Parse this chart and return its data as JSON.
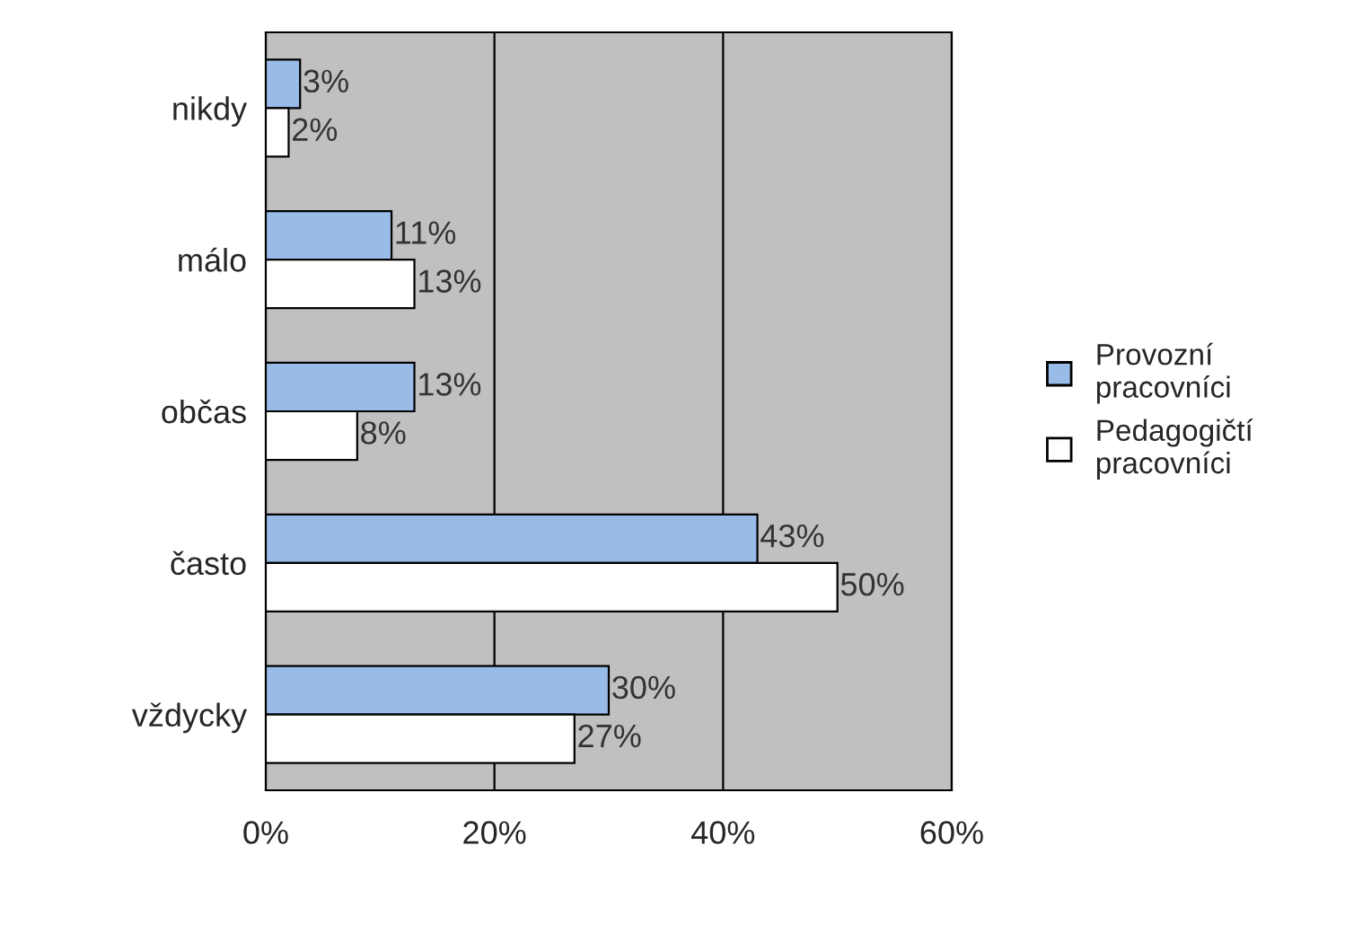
{
  "chart_data": {
    "type": "bar",
    "orientation": "horizontal",
    "categories": [
      "nikdy",
      "málo",
      "občas",
      "často",
      "vždycky"
    ],
    "series": [
      {
        "name": "Provozní\npracovníci",
        "color": "#99bbe8",
        "values": [
          3,
          11,
          13,
          43,
          30
        ],
        "value_labels": [
          "3%",
          "11%",
          "13%",
          "43%",
          "30%"
        ]
      },
      {
        "name": "Pedagogičtí\npracovníci",
        "color": "#ffffff",
        "values": [
          2,
          13,
          8,
          50,
          27
        ],
        "value_labels": [
          "2%",
          "13%",
          "8%",
          "50%",
          "27%"
        ]
      }
    ],
    "xlim": [
      0,
      60
    ],
    "xticks": [
      {
        "value": 0,
        "label": "0%"
      },
      {
        "value": 20,
        "label": "20%"
      },
      {
        "value": 40,
        "label": "40%"
      },
      {
        "value": 60,
        "label": "60%"
      }
    ],
    "grid": "x",
    "legend": "right"
  }
}
